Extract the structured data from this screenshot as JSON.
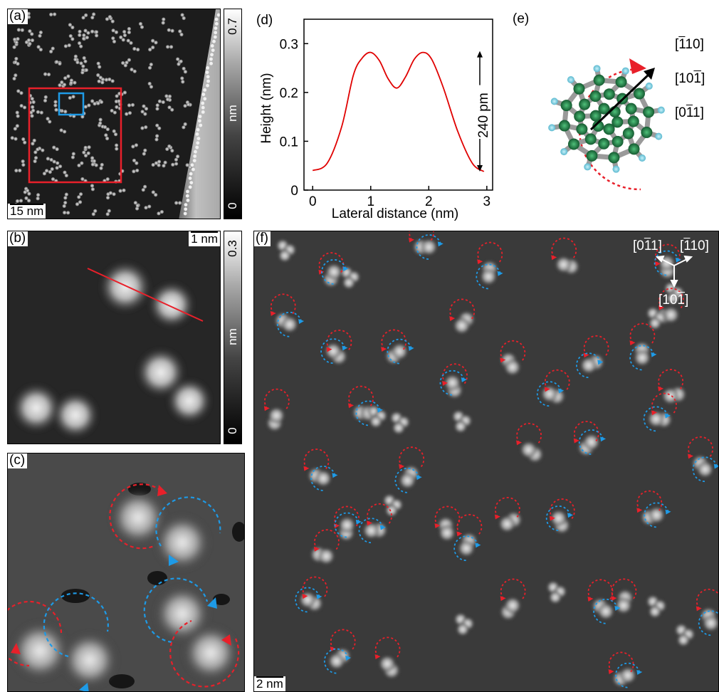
{
  "panels": {
    "a": {
      "label": "(a)",
      "scalebar": "15 nm",
      "colorbar": {
        "max": "0.7",
        "unit": "nm",
        "min": "0"
      }
    },
    "b": {
      "label": "(b)",
      "scalebar": "1 nm",
      "colorbar": {
        "max": "0.3",
        "unit": "nm",
        "min": "0"
      }
    },
    "c": {
      "label": "(c)"
    },
    "d": {
      "label": "(d)"
    },
    "e": {
      "label": "(e)",
      "directions": {
        "d1_a": "1",
        "d1_b": "10",
        "d2_a": "10",
        "d2_b": "1",
        "d3_a": "0",
        "d3_b": "1",
        "d3_c": "1"
      }
    },
    "f": {
      "label": "(f)",
      "scalebar": "2 nm",
      "compass": {
        "left_a": "0",
        "left_b": "1",
        "left_c": "1",
        "right_a": "1",
        "right_b": "10",
        "bottom_a": "10",
        "bottom_b": "1"
      }
    }
  },
  "chart_data": {
    "type": "line",
    "xlabel": "Lateral distance (nm)",
    "ylabel": "Height (nm)",
    "xlim": [
      -0.15,
      3.1
    ],
    "ylim": [
      0,
      0.35
    ],
    "xticks": [
      "0",
      "1",
      "2",
      "3"
    ],
    "xtick_values": [
      0,
      1,
      2,
      3
    ],
    "yticks": [
      "0",
      "0.1",
      "0.2",
      "0.3"
    ],
    "ytick_values": [
      0,
      0.1,
      0.2,
      0.3
    ],
    "annotation": "240 pm",
    "series": [
      {
        "color": "#e00000",
        "x": [
          0,
          0.25,
          0.5,
          0.7,
          0.85,
          1.0,
          1.15,
          1.3,
          1.45,
          1.6,
          1.75,
          1.9,
          2.05,
          2.25,
          2.5,
          2.75,
          2.95
        ],
        "y": [
          0.04,
          0.055,
          0.13,
          0.235,
          0.27,
          0.282,
          0.265,
          0.228,
          0.209,
          0.232,
          0.268,
          0.282,
          0.268,
          0.21,
          0.12,
          0.055,
          0.038
        ]
      }
    ]
  },
  "colors": {
    "red": "#e8202a",
    "blue": "#1e9ae6",
    "carbon": "#1f7a45",
    "hydrogen": "#7fd6e8"
  }
}
